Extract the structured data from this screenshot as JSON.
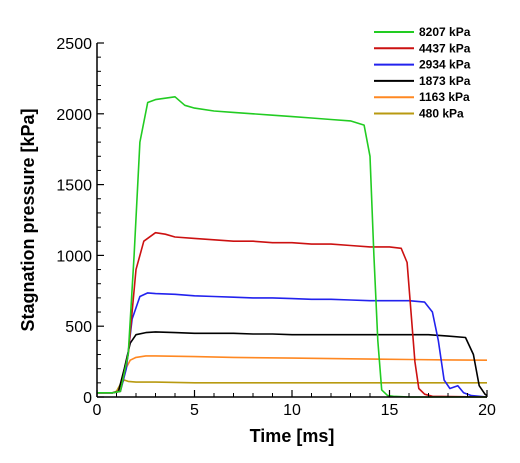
{
  "chart_data": {
    "type": "line",
    "title": "",
    "xlabel": "Time [ms]",
    "ylabel": "Stagnation pressure [kPa]",
    "xlim": [
      0,
      20
    ],
    "ylim": [
      0,
      2500
    ],
    "xticks": [
      "0",
      "5",
      "10",
      "15",
      "20"
    ],
    "yticks": [
      "0",
      "500",
      "1000",
      "1500",
      "2000",
      "2500"
    ],
    "grid": false,
    "legend_position": "top-right",
    "series": [
      {
        "name": "8207 kPa",
        "color": "#22cc22",
        "x": [
          0,
          0.8,
          1.2,
          1.6,
          1.9,
          2.2,
          2.6,
          3.0,
          3.5,
          4.0,
          4.5,
          5.0,
          6.0,
          7.0,
          8.0,
          9.0,
          10.0,
          11.0,
          12.0,
          13.0,
          13.7,
          14.0,
          14.2,
          14.4,
          14.6,
          14.9,
          15.2,
          16.0,
          20.0
        ],
        "y": [
          30,
          30,
          40,
          300,
          1000,
          1800,
          2080,
          2100,
          2110,
          2120,
          2060,
          2040,
          2020,
          2010,
          2000,
          1990,
          1980,
          1970,
          1960,
          1950,
          1920,
          1700,
          1000,
          400,
          50,
          10,
          5,
          0,
          0
        ]
      },
      {
        "name": "4437 kPa",
        "color": "#cc1111",
        "x": [
          0,
          0.8,
          1.2,
          1.6,
          2.0,
          2.4,
          3.0,
          3.5,
          4.0,
          5.0,
          6.0,
          7.0,
          8.0,
          9.0,
          10.0,
          11.0,
          12.0,
          13.0,
          14.0,
          15.0,
          15.6,
          15.9,
          16.1,
          16.3,
          16.5,
          16.8,
          17.2,
          20.0
        ],
        "y": [
          30,
          30,
          40,
          300,
          900,
          1100,
          1160,
          1150,
          1130,
          1120,
          1110,
          1100,
          1100,
          1090,
          1090,
          1080,
          1080,
          1070,
          1060,
          1060,
          1050,
          950,
          600,
          250,
          60,
          20,
          5,
          0
        ]
      },
      {
        "name": "2934 kPa",
        "color": "#2222ee",
        "x": [
          0,
          0.8,
          1.2,
          1.5,
          1.8,
          2.2,
          2.6,
          3.0,
          4.0,
          5.0,
          6.0,
          7.0,
          8.0,
          9.0,
          10.0,
          11.0,
          12.0,
          13.0,
          14.0,
          15.0,
          16.0,
          16.8,
          17.2,
          17.5,
          17.8,
          18.1,
          18.5,
          18.8,
          19.2,
          20.0
        ],
        "y": [
          30,
          30,
          40,
          200,
          550,
          710,
          735,
          730,
          725,
          715,
          710,
          705,
          700,
          700,
          695,
          690,
          690,
          685,
          680,
          680,
          680,
          670,
          600,
          400,
          120,
          60,
          80,
          30,
          10,
          0
        ]
      },
      {
        "name": "1873 kPa",
        "color": "#000000",
        "x": [
          0,
          0.8,
          1.1,
          1.4,
          1.7,
          2.0,
          2.5,
          3.0,
          4.0,
          5.0,
          6.0,
          7.0,
          8.0,
          9.0,
          10.0,
          11.0,
          12.0,
          13.0,
          14.0,
          15.0,
          16.0,
          17.0,
          18.0,
          18.9,
          19.3,
          19.6,
          19.9,
          20.0
        ],
        "y": [
          30,
          30,
          40,
          200,
          380,
          440,
          455,
          460,
          455,
          450,
          450,
          450,
          445,
          445,
          440,
          440,
          440,
          440,
          440,
          440,
          440,
          440,
          430,
          420,
          300,
          80,
          20,
          10
        ]
      },
      {
        "name": "1163 kPa",
        "color": "#ff8822",
        "x": [
          0,
          0.8,
          1.1,
          1.4,
          1.7,
          2.0,
          2.5,
          3.0,
          5.0,
          7.0,
          10.0,
          13.0,
          16.0,
          18.0,
          20.0
        ],
        "y": [
          30,
          30,
          40,
          180,
          260,
          280,
          290,
          290,
          285,
          280,
          275,
          270,
          265,
          262,
          260
        ]
      },
      {
        "name": "480 kPa",
        "color": "#b89a10",
        "x": [
          0,
          0.8,
          1.0,
          1.2,
          1.4,
          1.6,
          2.0,
          3.0,
          5.0,
          8.0,
          12.0,
          16.0,
          20.0
        ],
        "y": [
          30,
          30,
          40,
          90,
          120,
          110,
          105,
          105,
          100,
          100,
          100,
          100,
          100
        ]
      }
    ]
  }
}
